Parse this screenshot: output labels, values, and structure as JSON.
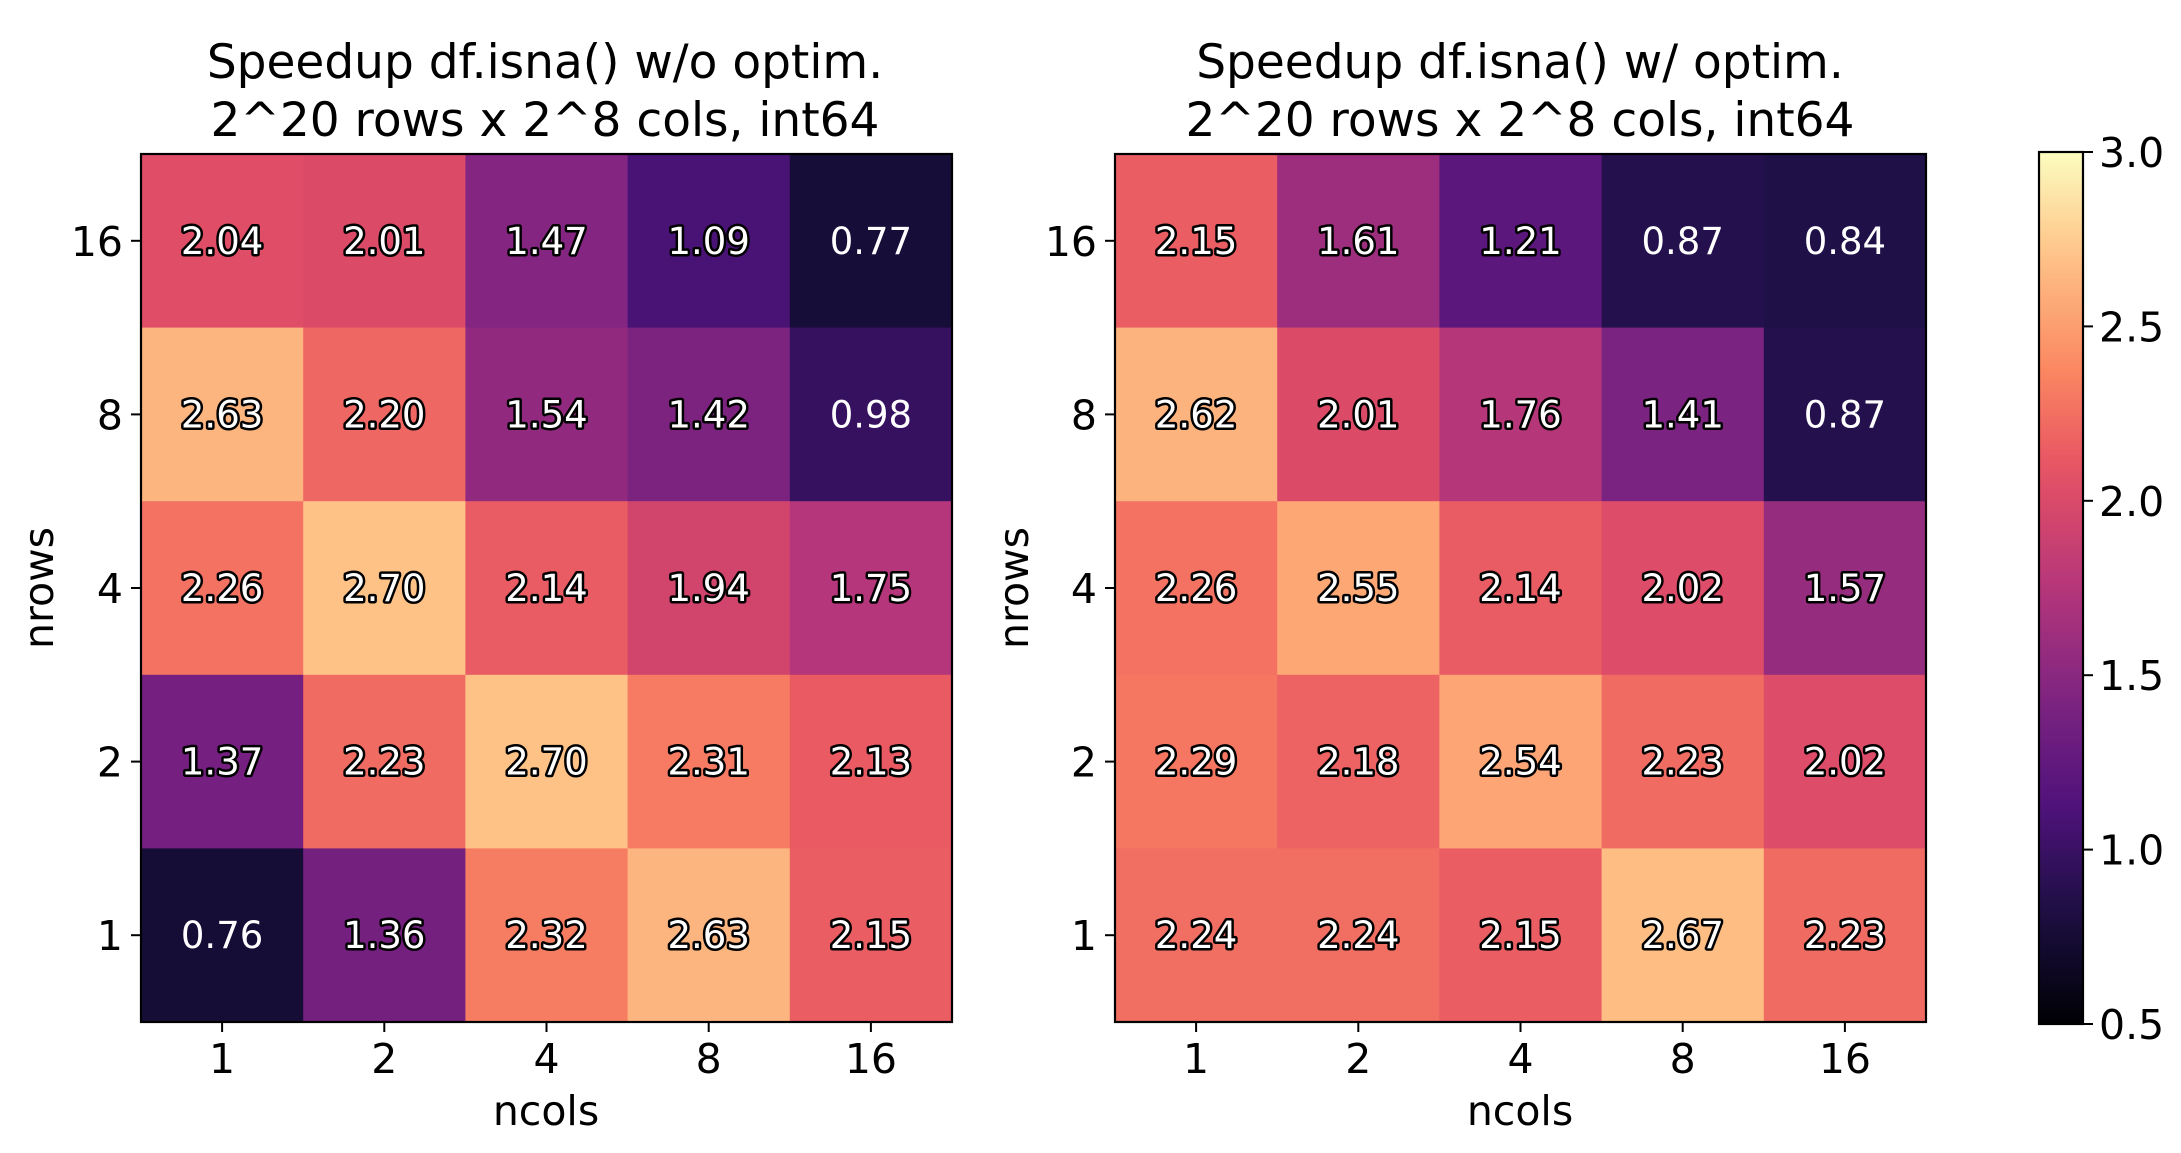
{
  "chart_data": [
    {
      "type": "heatmap",
      "title_lines": [
        "Speedup df.isna() w/o optim.",
        "2^20 rows x 2^8 cols, int64"
      ],
      "xlabel": "ncols",
      "ylabel": "nrows",
      "x_categories": [
        "1",
        "2",
        "4",
        "8",
        "16"
      ],
      "y_categories": [
        "16",
        "8",
        "4",
        "2",
        "1"
      ],
      "values": [
        [
          2.04,
          2.01,
          1.47,
          1.09,
          0.77
        ],
        [
          2.63,
          2.2,
          1.54,
          1.42,
          0.98
        ],
        [
          2.26,
          2.7,
          2.14,
          1.94,
          1.75
        ],
        [
          1.37,
          2.23,
          2.7,
          2.31,
          2.13
        ],
        [
          0.76,
          1.36,
          2.32,
          2.63,
          2.15
        ]
      ],
      "value_labels": [
        [
          "2.04",
          "2.01",
          "1.47",
          "1.09",
          "0.77"
        ],
        [
          "2.63",
          "2.20",
          "1.54",
          "1.42",
          "0.98"
        ],
        [
          "2.26",
          "2.70",
          "2.14",
          "1.94",
          "1.75"
        ],
        [
          "1.37",
          "2.23",
          "2.70",
          "2.31",
          "2.13"
        ],
        [
          "0.76",
          "1.36",
          "2.32",
          "2.63",
          "2.15"
        ]
      ]
    },
    {
      "type": "heatmap",
      "title_lines": [
        "Speedup df.isna() w/ optim.",
        "2^20 rows x 2^8 cols, int64"
      ],
      "xlabel": "ncols",
      "ylabel": "nrows",
      "x_categories": [
        "1",
        "2",
        "4",
        "8",
        "16"
      ],
      "y_categories": [
        "16",
        "8",
        "4",
        "2",
        "1"
      ],
      "values": [
        [
          2.15,
          1.61,
          1.21,
          0.87,
          0.84
        ],
        [
          2.62,
          2.01,
          1.76,
          1.41,
          0.87
        ],
        [
          2.26,
          2.55,
          2.14,
          2.02,
          1.57
        ],
        [
          2.29,
          2.18,
          2.54,
          2.23,
          2.02
        ],
        [
          2.24,
          2.24,
          2.15,
          2.67,
          2.23
        ]
      ],
      "value_labels": [
        [
          "2.15",
          "1.61",
          "1.21",
          "0.87",
          "0.84"
        ],
        [
          "2.62",
          "2.01",
          "1.76",
          "1.41",
          "0.87"
        ],
        [
          "2.26",
          "2.55",
          "2.14",
          "2.02",
          "1.57"
        ],
        [
          "2.29",
          "2.18",
          "2.54",
          "2.23",
          "2.02"
        ],
        [
          "2.24",
          "2.24",
          "2.15",
          "2.67",
          "2.23"
        ]
      ]
    }
  ],
  "colorbar": {
    "colormap": "magma",
    "range": [
      0.5,
      3.0
    ],
    "ticks": [
      0.5,
      1.0,
      1.5,
      2.0,
      2.5,
      3.0
    ],
    "tick_labels": [
      "0.5",
      "1.0",
      "1.5",
      "2.0",
      "2.5",
      "3.0"
    ]
  }
}
